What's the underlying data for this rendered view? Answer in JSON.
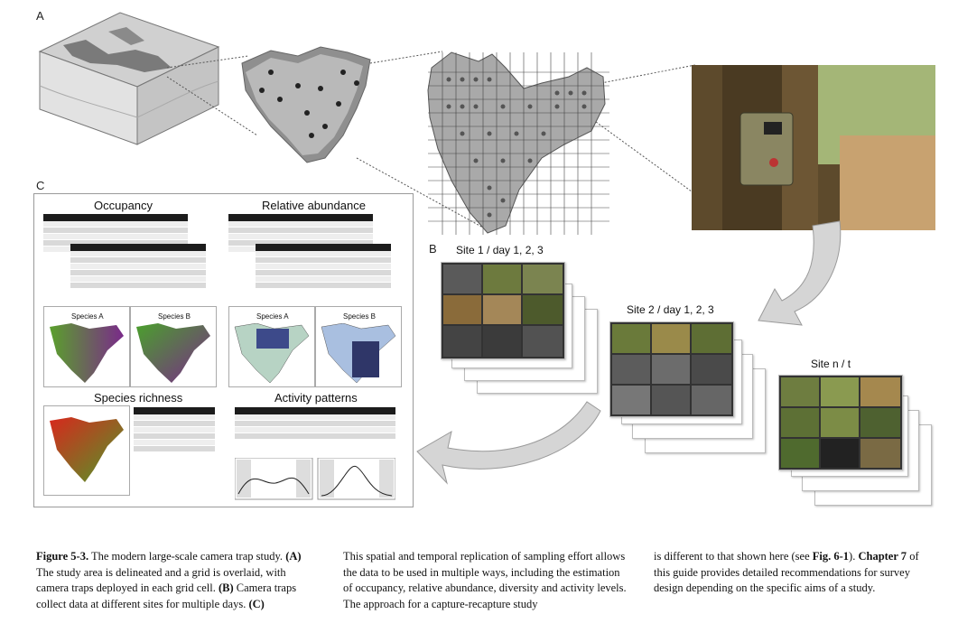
{
  "figure": {
    "panel_a_letter": "A",
    "panel_b_letter": "B",
    "panel_c_letter": "C",
    "sites": [
      {
        "label": "Site 1 / day 1, 2, 3"
      },
      {
        "label": "Site 2 / day 1, 2, 3"
      },
      {
        "label": "Site n / t"
      }
    ],
    "panel_c": {
      "occupancy": "Occupancy",
      "relative_abundance": "Relative abundance",
      "species_richness": "Species richness",
      "activity_patterns": "Activity patterns",
      "species_a": "Species A",
      "species_b": "Species B"
    }
  },
  "caption": {
    "col1": {
      "fig_label": "Figure 5-3.",
      "text1": " The modern large-scale camera trap study. ",
      "a": "(A)",
      "text2": " The study area is delineated and a grid is overlaid, with camera traps deployed in each grid cell. ",
      "b": "(B)",
      "text3": " Camera traps collect data at different sites for multiple days. ",
      "c": "(C)"
    },
    "col2": {
      "text": "This spatial and temporal replication of sampling effort allows the data to be used in multiple ways, including the estimation of occupancy, relative abundance, diversity and activity levels. The approach for a capture-recapture study"
    },
    "col3": {
      "text1": "is different to that shown here (see ",
      "fig_ref": "Fig. 6-1",
      "text2": "). ",
      "chapter": "Chapter 7",
      "text3": " of this guide provides detailed recommendations for survey design depending on the specific aims of a study."
    }
  }
}
